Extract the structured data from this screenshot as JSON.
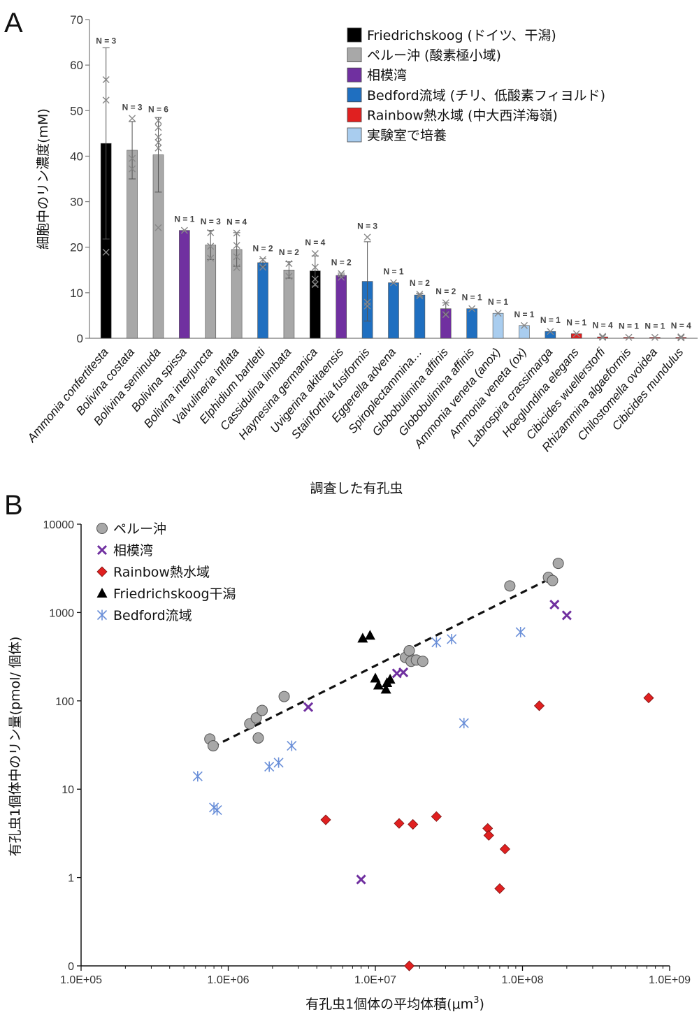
{
  "chart_data": [
    {
      "panel_label": "A",
      "type": "bar",
      "xlabel": "調査した有孔虫",
      "ylabel": "細胞中のリン濃度(mM)",
      "ylim": [
        0,
        70
      ],
      "yticks": [
        "0",
        "10",
        "20",
        "30",
        "40",
        "50",
        "60",
        "70"
      ],
      "legend": {
        "position": "top-right",
        "entries": [
          {
            "label": "Friedrichskoog (ドイツ、干潟)",
            "color": "#000000"
          },
          {
            "label": "ペルー沖 (酸素極小域)",
            "color": "#a8a8a8"
          },
          {
            "label": "相模湾",
            "color": "#7030a0"
          },
          {
            "label": "Bedford流域 (チリ、低酸素フィヨルド)",
            "color": "#1f6fc0"
          },
          {
            "label": "Rainbow熱水域 (中大西洋海嶺)",
            "color": "#e02020"
          },
          {
            "label": "実験室で培養",
            "color": "#a9cdef"
          }
        ]
      },
      "categories": [
        {
          "name": "Ammonia confertitesta",
          "value": 42.8,
          "err": 21,
          "n_label": "N = 3",
          "group": 0,
          "points": [
            18.9,
            52.3,
            56.8
          ]
        },
        {
          "name": "Bolivina costata",
          "value": 41.3,
          "err": 6.3,
          "n_label": "N = 3",
          "group": 1,
          "points": [
            37.2,
            39.5,
            48.3
          ]
        },
        {
          "name": "Bolivina seminuda",
          "value": 40.3,
          "err": 8.2,
          "n_label": "N = 6",
          "group": 1,
          "points": [
            24.3,
            41.8,
            43.0,
            44.2,
            46.3,
            47.8
          ]
        },
        {
          "name": "Bolivina spissa",
          "value": 23.7,
          "err": 0,
          "n_label": "N = 1",
          "group": 2,
          "points": [
            23.7
          ]
        },
        {
          "name": "Bolivina interjuncta",
          "value": 20.5,
          "err": 3.2,
          "n_label": "N = 3",
          "group": 1,
          "points": [
            17.6,
            20.2,
            23.2
          ]
        },
        {
          "name": "Valvulineria inflata",
          "value": 19.5,
          "err": 3.7,
          "n_label": "N = 4",
          "group": 1,
          "points": [
            15.5,
            17.9,
            20.4,
            23.1
          ]
        },
        {
          "name": "Elphidium bartletti",
          "value": 16.6,
          "err": 0.9,
          "n_label": "N = 2",
          "group": 3,
          "points": [
            15.6,
            17.3
          ]
        },
        {
          "name": "Cassidulina limbata",
          "value": 15.0,
          "err": 1.8,
          "n_label": "N = 2",
          "group": 1,
          "points": [
            13.6,
            16.4
          ]
        },
        {
          "name": "Haynesina germanica",
          "value": 14.8,
          "err": 3.3,
          "n_label": "N = 4",
          "group": 0,
          "points": [
            11.8,
            13.0,
            15.6,
            18.6
          ]
        },
        {
          "name": "Uvigerina akitaensis",
          "value": 13.8,
          "err": 0.5,
          "n_label": "N = 2",
          "group": 2,
          "points": [
            13.4,
            14.2
          ]
        },
        {
          "name": "Stainforthia fusiformis",
          "value": 12.5,
          "err": 8.7,
          "n_label": "N = 3",
          "group": 3,
          "points": [
            7.1,
            7.9,
            22.2
          ]
        },
        {
          "name": "Eggerella advena",
          "value": 12.2,
          "err": 0,
          "n_label": "N = 1",
          "group": 3,
          "points": [
            12.2
          ]
        },
        {
          "name": "Spiroplectammina…",
          "value": 9.5,
          "err": 0.3,
          "n_label": "N = 2",
          "group": 3,
          "points": [
            9.3,
            9.7
          ]
        },
        {
          "name": "Globobulimina affinis",
          "value": 6.5,
          "err": 1.3,
          "n_label": "N = 2",
          "group": 2,
          "points": [
            5.2,
            7.8
          ]
        },
        {
          "name": "Globobulimina affinis",
          "value": 6.5,
          "err": 0,
          "n_label": "N = 1",
          "group": 3,
          "points": [
            6.5
          ]
        },
        {
          "name": "Ammonia veneta (anox)",
          "value": 5.5,
          "err": 0,
          "n_label": "N = 1",
          "group": 5,
          "points": [
            5.5
          ]
        },
        {
          "name": "Ammonia veneta (ox)",
          "value": 2.8,
          "err": 0,
          "n_label": "N = 1",
          "group": 5,
          "points": [
            2.8
          ]
        },
        {
          "name": "Labrospira crassimarga",
          "value": 1.5,
          "err": 0,
          "n_label": "N = 1",
          "group": 3,
          "points": [
            1.5
          ]
        },
        {
          "name": "Hoeglundina elegans",
          "value": 1.0,
          "err": 0,
          "n_label": "N = 1",
          "group": 4,
          "points": [
            1.0
          ]
        },
        {
          "name": "Cibicides wuellerstorfi",
          "value": 0.3,
          "err": 0,
          "n_label": "N = 4",
          "group": 4,
          "points": [
            0.3,
            0.2,
            0.4,
            0.3
          ]
        },
        {
          "name": "Rhizammina algaeformis",
          "value": 0.2,
          "err": 0,
          "n_label": "N = 1",
          "group": 4,
          "points": [
            0.2
          ]
        },
        {
          "name": "Chilostomella ovoidea",
          "value": 0.2,
          "err": 0,
          "n_label": "N = 1",
          "group": 4,
          "points": [
            0.2
          ]
        },
        {
          "name": "Cibicides mundulus",
          "value": 0.2,
          "err": 0,
          "n_label": "N = 4",
          "group": 4,
          "points": [
            0.2,
            0.3,
            0.1,
            0.2
          ]
        }
      ]
    },
    {
      "panel_label": "B",
      "type": "scatter",
      "x_scale": "log",
      "y_scale": "log",
      "xlabel": "有孔虫1個体の平均体積(μm",
      "xlabel_sup": "3",
      "xlabel_end": ")",
      "ylabel": "有孔虫1個体中のリン量(pmol/ 個体)",
      "xlim": [
        100000,
        1000000000
      ],
      "ylim": [
        0.1,
        10000
      ],
      "xticks": [
        {
          "value": 100000,
          "label": "1.0E+05"
        },
        {
          "value": 1000000,
          "label": "1.0E+06"
        },
        {
          "value": 10000000,
          "label": "1.0E+07"
        },
        {
          "value": 100000000,
          "label": "1.0E+08"
        },
        {
          "value": 1000000000,
          "label": "1.0E+09"
        }
      ],
      "yticks": [
        {
          "value": 0.1,
          "label": "0"
        },
        {
          "value": 1,
          "label": "1"
        },
        {
          "value": 10,
          "label": "10"
        },
        {
          "value": 100,
          "label": "100"
        },
        {
          "value": 1000,
          "label": "1000"
        },
        {
          "value": 10000,
          "label": "10000"
        }
      ],
      "trendline": {
        "style": "dashed",
        "x": [
          780000,
          160000000
        ],
        "y": [
          30,
          2500
        ]
      },
      "series": [
        {
          "name": "ペルー沖",
          "marker": "circle",
          "color": "#a8a8a8",
          "x": [
            750000,
            790000,
            1400000,
            1550000,
            1600000,
            1700000,
            2400000,
            16000000,
            17000000,
            18000000,
            17500000,
            19000000,
            21000000,
            82000000,
            150000000,
            160000000,
            175000000
          ],
          "y": [
            37,
            31,
            55,
            64,
            38,
            78,
            112,
            310,
            370,
            290,
            280,
            290,
            280,
            2000,
            2500,
            2300,
            3600
          ]
        },
        {
          "name": "相模湾",
          "marker": "x",
          "color": "#7030a0",
          "x": [
            3500000,
            8000000,
            14000000,
            15500000,
            165000000,
            200000000
          ],
          "y": [
            85,
            0.95,
            205,
            210,
            1230,
            930
          ]
        },
        {
          "name": "Rainbow熱水域",
          "marker": "diamond",
          "color": "#e02020",
          "x": [
            4600000,
            14500000,
            18000000,
            26000000,
            58000000,
            59000000,
            70000000,
            76000000,
            130000000,
            720000000,
            17000000
          ],
          "y": [
            4.5,
            4.1,
            4.0,
            4.9,
            3.6,
            3.0,
            0.75,
            2.1,
            88,
            108,
            0.1
          ]
        },
        {
          "name": "Friedrichskoog干潟",
          "marker": "triangle",
          "color": "#000000",
          "x": [
            8200000,
            9200000,
            10500000,
            10000000,
            11800000,
            12000000,
            12600000
          ],
          "y": [
            510,
            550,
            150,
            180,
            135,
            160,
            175
          ]
        },
        {
          "name": "Bedford流域",
          "marker": "asterisk",
          "color": "#6a8fd8",
          "x": [
            620000,
            800000,
            840000,
            1900000,
            2200000,
            2700000,
            26000000,
            33000000,
            40000000,
            97000000
          ],
          "y": [
            14,
            6.2,
            5.8,
            18,
            20,
            31,
            460,
            500,
            56,
            600
          ]
        }
      ]
    }
  ]
}
